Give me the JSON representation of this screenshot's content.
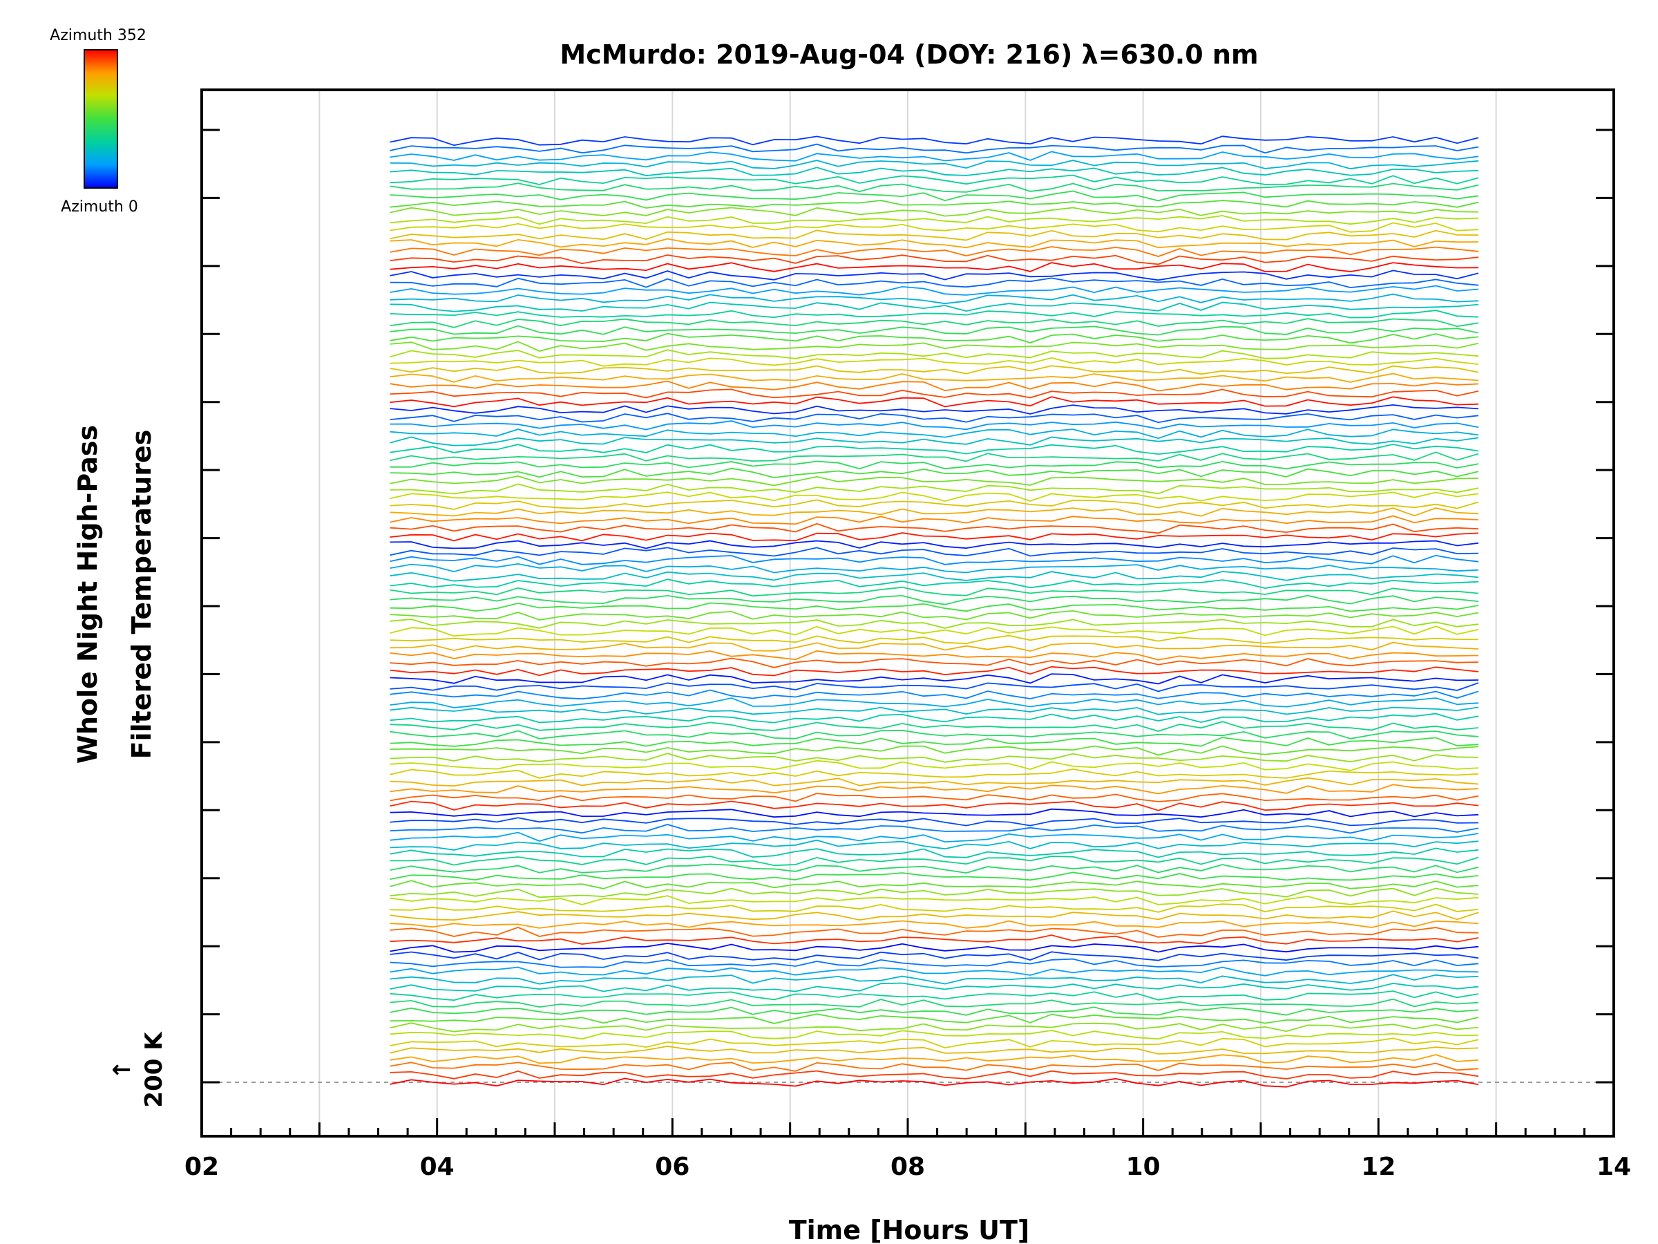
{
  "chart_data": {
    "type": "line",
    "title": "McMurdo: 2019-Aug-04 (DOY: 216) λ=630.0 nm",
    "xlabel": "Time [Hours UT]",
    "ylabel_line1": "Whole Night High-Pass",
    "ylabel_line2": "Filtered Temperatures",
    "x_range": [
      2,
      14
    ],
    "x_ticks": [
      2,
      4,
      6,
      8,
      10,
      12,
      14
    ],
    "x_tick_labels": [
      "02",
      "04",
      "06",
      "08",
      "10",
      "12",
      "14"
    ],
    "x_gridlines": [
      3,
      4,
      5,
      6,
      7,
      8,
      9,
      10,
      11,
      12,
      13
    ],
    "y_major_tick_count": 15,
    "data_time_range": [
      3.6,
      12.85
    ],
    "series_count": 120,
    "azimuth_cycles": 7,
    "azimuth_min": 0,
    "azimuth_max": 352,
    "colorbar": {
      "top_label": "Azimuth 352",
      "bottom_label": "Azimuth 0",
      "colormap": "rainbow",
      "colors": [
        "#0000ff",
        "#00a0ff",
        "#00d0a0",
        "#40e040",
        "#c0e000",
        "#ffa000",
        "#ff0000"
      ]
    },
    "reference": {
      "label": "200 K",
      "arrow": "↑"
    },
    "note": "Stacked, vertically offset high-pass filtered temperature traces; color encodes viewing azimuth."
  }
}
